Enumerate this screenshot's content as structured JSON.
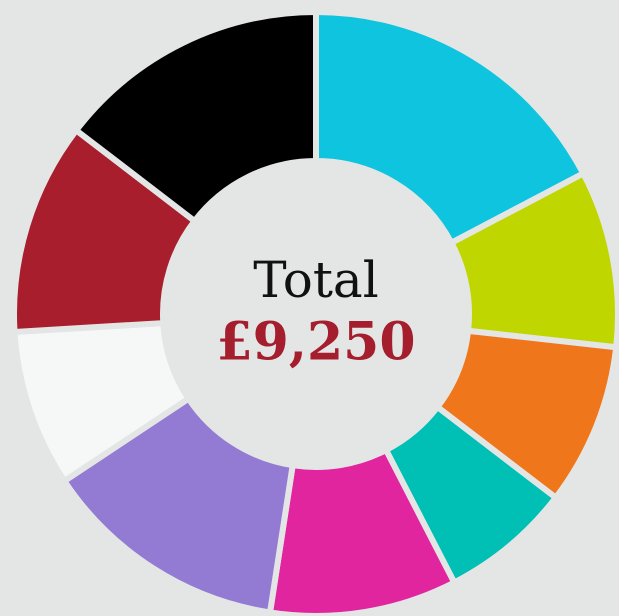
{
  "chart_data": {
    "type": "donut",
    "values": [
      1600,
      875,
      800,
      650,
      925,
      1225,
      775,
      1050,
      1350
    ],
    "colors": [
      "#0fc4de",
      "#bfd600",
      "#ef761b",
      "#00bfb5",
      "#e0259e",
      "#937bd4",
      "#f6f8f7",
      "#a81e2d",
      "#000000"
    ],
    "center_title": "Total",
    "center_value": "£9,250"
  }
}
